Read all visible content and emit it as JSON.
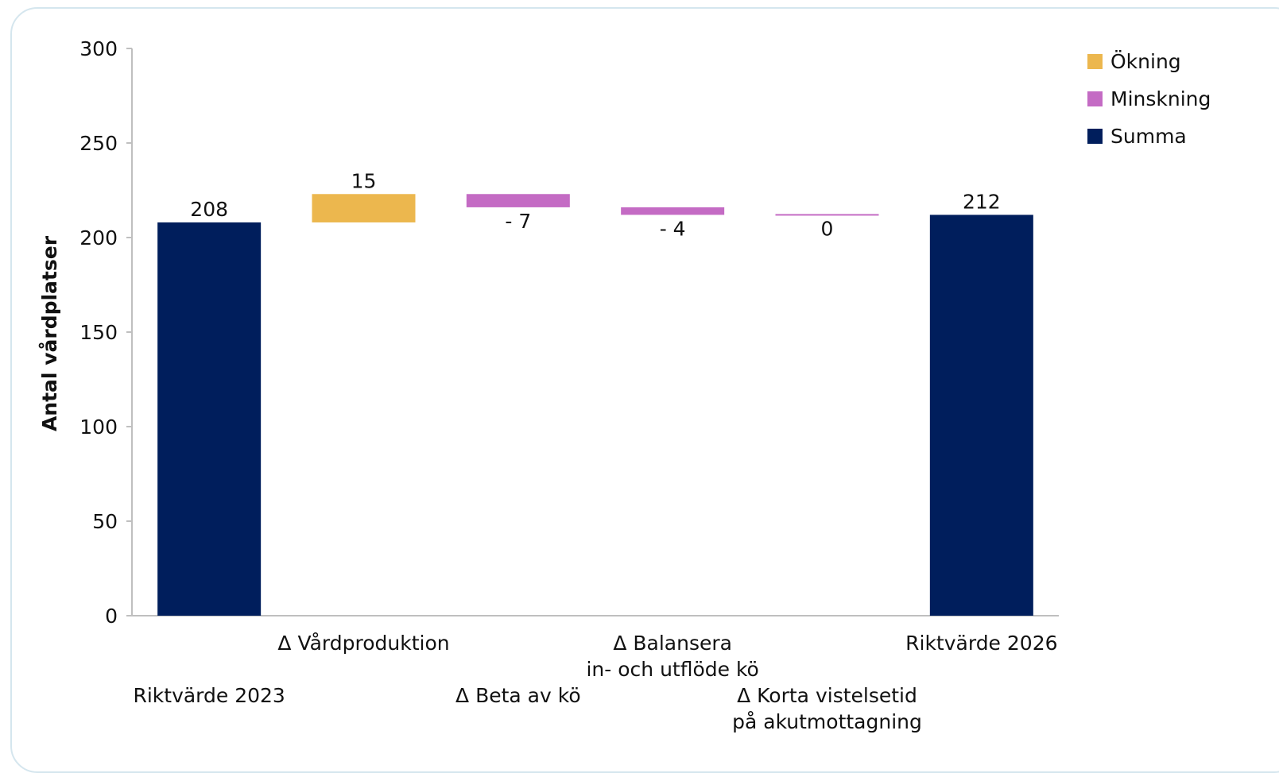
{
  "chart_data": {
    "type": "bar",
    "subtype": "waterfall",
    "categories": [
      "Riktvärde 2023",
      "Δ Vårdproduktion",
      "Δ Beta av kö",
      "Δ Balansera\nin- och utflöde kö",
      "Δ Korta vistelsetid\npå akutmottagning",
      "Riktvärde 2026"
    ],
    "bars": [
      {
        "kind": "Summa",
        "start": 0,
        "end": 208,
        "label": "208"
      },
      {
        "kind": "Ökning",
        "start": 208,
        "end": 223,
        "label": "15"
      },
      {
        "kind": "Minskning",
        "start": 223,
        "end": 216,
        "label": "- 7"
      },
      {
        "kind": "Minskning",
        "start": 216,
        "end": 212,
        "label": "- 4"
      },
      {
        "kind": "Minskning",
        "start": 212,
        "end": 212,
        "label": "0"
      },
      {
        "kind": "Summa",
        "start": 0,
        "end": 212,
        "label": "212"
      }
    ],
    "ylabel": "Antal vårdplatser",
    "xlabel": "",
    "ylim": [
      0,
      300
    ],
    "yticks": [
      "0",
      "50",
      "100",
      "150",
      "200",
      "250",
      "300"
    ],
    "grid": false,
    "legend": {
      "placement": "top-right",
      "entries": [
        {
          "name": "Ökning",
          "color": "#ecb74e"
        },
        {
          "name": "Minskning",
          "color": "#c46bc4"
        },
        {
          "name": "Summa",
          "color": "#001e5c"
        }
      ]
    }
  }
}
